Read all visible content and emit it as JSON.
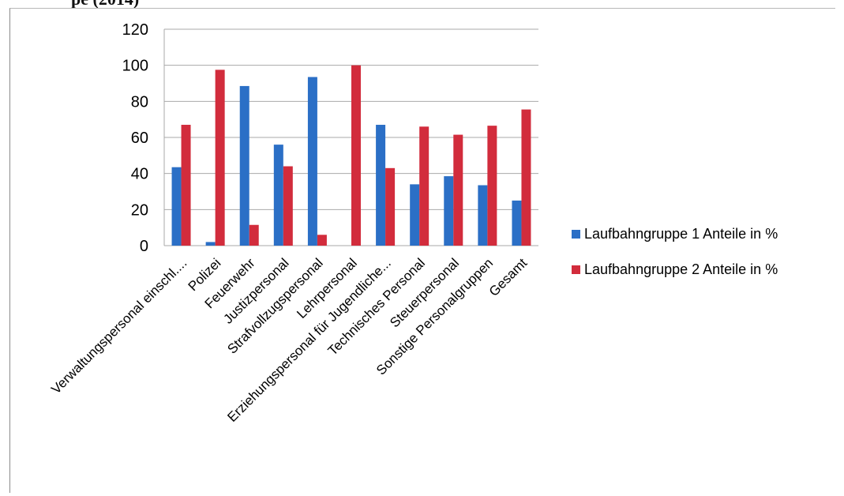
{
  "header": {
    "fragment": "pe (2014)"
  },
  "colors": {
    "series1": "#2b6fc6",
    "series2": "#d22c3c",
    "grid": "#a9a9a9"
  },
  "chart_data": {
    "type": "bar",
    "categories": [
      "Verwaltungspersonal einschl....",
      "Polizei",
      "Feuerwehr",
      "Justizpersonal",
      "Strafvollzugspersonal",
      "Lehrpersonal",
      "Erziehungspersonal für Jugendliche...",
      "Technisches Personal",
      "Steuerpersonal",
      "Sonstige Personalgruppen",
      "Gesamt"
    ],
    "series": [
      {
        "name": "Laufbahngruppe 1 Anteile in %",
        "values": [
          43.5,
          2,
          88.5,
          56,
          93.5,
          0,
          67,
          34,
          38.5,
          33.5,
          25
        ]
      },
      {
        "name": "Laufbahngruppe 2 Anteile in %",
        "values": [
          67,
          97.5,
          11.5,
          44,
          6,
          100,
          43,
          66,
          61.5,
          66.5,
          75.5
        ]
      }
    ],
    "yticks": [
      0,
      20,
      40,
      60,
      80,
      100,
      120
    ],
    "ylim": [
      0,
      120
    ],
    "grid": true,
    "legend": "right"
  }
}
